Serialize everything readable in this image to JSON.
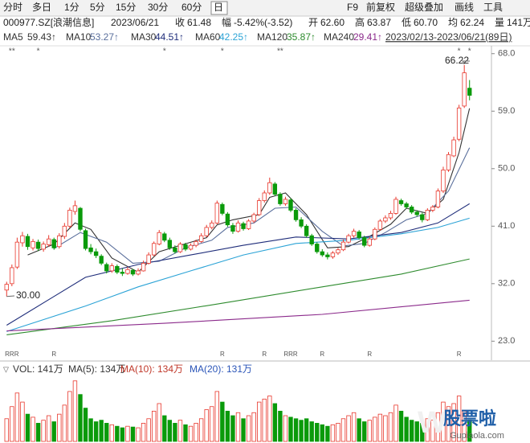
{
  "toolbar": {
    "tabs": [
      "分时",
      "多日",
      "1分",
      "5分",
      "15分",
      "30分",
      "60分",
      "日"
    ],
    "tools": [
      "F9",
      "前复权",
      "超级叠加",
      "画线",
      "工具"
    ]
  },
  "info": {
    "code": "000977.SZ[浪潮信息]",
    "date": "2023/06/21",
    "items": [
      {
        "label": "收",
        "value": "61.48"
      },
      {
        "label": "幅",
        "value": "-5.42%(-3.52)"
      },
      {
        "label": "开",
        "value": "62.60"
      },
      {
        "label": "高",
        "value": "63.87"
      },
      {
        "label": "低",
        "value": "60.70"
      },
      {
        "label": "均",
        "value": "62.24"
      },
      {
        "label": "量",
        "value": "141万"
      }
    ]
  },
  "ma_legend": {
    "items": [
      {
        "name": "MA5",
        "value": "59.43↑",
        "color": "#333333"
      },
      {
        "name": "MA10",
        "value": "53.27↑",
        "color": "#5a6f9c"
      },
      {
        "name": "MA30",
        "value": "44.51↑",
        "color": "#1f2d7a"
      },
      {
        "name": "MA60",
        "value": "42.25↑",
        "color": "#2ba3d6"
      },
      {
        "name": "MA120",
        "value": "35.87↑",
        "color": "#2e8b2e"
      },
      {
        "name": "MA240",
        "value": "29.41↑",
        "color": "#8b2a8b"
      }
    ],
    "range": "2023/02/13-2023/06/21(89日)"
  },
  "volume_legend": [
    {
      "text": "VOL: 141万",
      "color": "#333333"
    },
    {
      "text": "MA(5): 134万",
      "color": "#333333"
    },
    {
      "text": "MA(10): 134万",
      "color": "#c0392b"
    },
    {
      "text": "MA(20): 131万",
      "color": "#2b55b8"
    }
  ],
  "watermark": {
    "brand": "股票啦",
    "site": "Gupiaola.com"
  },
  "chart_data": {
    "type": "candlestick",
    "up_color": "#e8372c",
    "down_color": "#0a9a0a",
    "ylim": [
      20.4,
      69.1
    ],
    "yticks": [
      {
        "value": 23,
        "label": "23.0"
      },
      {
        "value": 32,
        "label": "32.0"
      },
      {
        "value": 41,
        "label": "41.0"
      },
      {
        "value": 50,
        "label": "50.0"
      },
      {
        "value": 59,
        "label": "59.0"
      },
      {
        "value": 68,
        "label": "68.0"
      }
    ],
    "annotations": [
      "66.22",
      "30.00"
    ],
    "candles": [
      [
        31.0,
        32.3,
        30.0,
        31.9
      ],
      [
        32.0,
        35.0,
        31.6,
        34.5
      ],
      [
        34.6,
        39.2,
        34.3,
        38.5
      ],
      [
        38.4,
        40.1,
        37.8,
        39.5
      ],
      [
        39.4,
        39.8,
        37.3,
        37.8
      ],
      [
        37.6,
        39.0,
        37.2,
        38.6
      ],
      [
        38.5,
        38.9,
        37.1,
        37.5
      ],
      [
        37.4,
        38.6,
        37.0,
        38.2
      ],
      [
        38.1,
        39.6,
        37.8,
        39.0
      ],
      [
        38.9,
        39.2,
        37.3,
        37.6
      ],
      [
        37.8,
        39.9,
        37.5,
        39.5
      ],
      [
        39.4,
        41.5,
        39.0,
        41.0
      ],
      [
        41.0,
        43.9,
        40.7,
        43.5
      ],
      [
        43.3,
        45.0,
        42.8,
        44.2
      ],
      [
        43.8,
        44.0,
        40.2,
        40.5
      ],
      [
        40.3,
        40.6,
        37.2,
        37.5
      ],
      [
        37.6,
        38.2,
        36.6,
        37.0
      ],
      [
        37.0,
        37.5,
        36.0,
        36.4
      ],
      [
        36.3,
        36.6,
        34.9,
        35.2
      ],
      [
        35.0,
        35.3,
        33.6,
        34.0
      ],
      [
        34.0,
        35.2,
        33.7,
        34.8
      ],
      [
        34.7,
        35.0,
        33.5,
        33.8
      ],
      [
        33.8,
        34.4,
        33.2,
        33.6
      ],
      [
        33.6,
        34.6,
        33.4,
        34.2
      ],
      [
        34.1,
        34.3,
        33.2,
        33.5
      ],
      [
        33.5,
        34.4,
        33.3,
        34.0
      ],
      [
        34.0,
        35.6,
        33.9,
        35.2
      ],
      [
        35.2,
        36.9,
        35.0,
        36.5
      ],
      [
        36.5,
        38.6,
        36.3,
        38.3
      ],
      [
        38.2,
        40.4,
        38.0,
        40.0
      ],
      [
        39.8,
        40.1,
        38.5,
        38.8
      ],
      [
        38.8,
        39.2,
        37.3,
        37.6
      ],
      [
        37.6,
        38.0,
        36.7,
        37.0
      ],
      [
        37.0,
        38.5,
        36.8,
        38.2
      ],
      [
        38.1,
        38.4,
        37.1,
        37.4
      ],
      [
        37.4,
        38.3,
        37.2,
        38.0
      ],
      [
        38.0,
        38.9,
        37.7,
        38.6
      ],
      [
        38.6,
        39.9,
        38.4,
        39.5
      ],
      [
        39.5,
        41.2,
        39.3,
        40.8
      ],
      [
        40.8,
        41.9,
        40.5,
        41.5
      ],
      [
        41.5,
        45.0,
        41.3,
        44.6
      ],
      [
        44.4,
        44.7,
        42.7,
        43.0
      ],
      [
        42.9,
        43.2,
        40.9,
        41.2
      ],
      [
        41.1,
        41.5,
        39.8,
        40.2
      ],
      [
        40.2,
        41.9,
        40.0,
        41.5
      ],
      [
        41.4,
        41.7,
        40.3,
        40.6
      ],
      [
        40.6,
        42.1,
        40.4,
        41.8
      ],
      [
        41.8,
        43.1,
        41.5,
        42.8
      ],
      [
        42.8,
        45.4,
        42.6,
        45.0
      ],
      [
        45.0,
        46.6,
        44.7,
        46.2
      ],
      [
        46.2,
        48.6,
        45.9,
        47.8
      ],
      [
        47.6,
        47.9,
        45.7,
        46.0
      ],
      [
        46.0,
        46.3,
        44.2,
        44.5
      ],
      [
        44.5,
        45.6,
        44.2,
        45.2
      ],
      [
        45.1,
        45.4,
        43.2,
        43.5
      ],
      [
        43.5,
        43.8,
        41.7,
        42.0
      ],
      [
        42.0,
        42.4,
        40.7,
        41.0
      ],
      [
        41.0,
        41.3,
        39.2,
        39.5
      ],
      [
        39.5,
        39.8,
        37.9,
        38.2
      ],
      [
        38.2,
        38.5,
        36.7,
        37.0
      ],
      [
        37.0,
        37.4,
        36.2,
        36.5
      ],
      [
        36.5,
        36.9,
        35.8,
        36.2
      ],
      [
        36.2,
        37.1,
        35.9,
        36.8
      ],
      [
        36.8,
        37.6,
        36.5,
        37.3
      ],
      [
        37.3,
        38.9,
        37.1,
        38.5
      ],
      [
        38.5,
        39.8,
        38.3,
        39.5
      ],
      [
        39.5,
        40.6,
        39.2,
        40.2
      ],
      [
        40.1,
        40.4,
        38.9,
        39.2
      ],
      [
        39.2,
        39.5,
        37.7,
        38.0
      ],
      [
        38.0,
        39.3,
        37.8,
        39.0
      ],
      [
        39.0,
        40.8,
        38.8,
        40.5
      ],
      [
        40.5,
        42.1,
        40.3,
        41.8
      ],
      [
        41.8,
        42.7,
        41.5,
        42.3
      ],
      [
        42.3,
        43.4,
        42.0,
        43.0
      ],
      [
        43.0,
        45.6,
        42.8,
        45.2
      ],
      [
        45.0,
        45.3,
        44.2,
        44.5
      ],
      [
        44.5,
        44.8,
        43.7,
        44.0
      ],
      [
        44.0,
        44.3,
        42.9,
        43.2
      ],
      [
        43.2,
        43.5,
        42.5,
        42.8
      ],
      [
        42.8,
        43.1,
        41.6,
        42.0
      ],
      [
        42.0,
        43.8,
        41.8,
        43.5
      ],
      [
        43.5,
        44.3,
        43.2,
        44.0
      ],
      [
        44.0,
        46.9,
        43.8,
        46.5
      ],
      [
        46.5,
        50.3,
        46.2,
        49.8
      ],
      [
        49.8,
        52.6,
        49.5,
        52.2
      ],
      [
        52.0,
        55.0,
        51.8,
        54.5
      ],
      [
        54.6,
        60.0,
        54.3,
        59.5
      ],
      [
        59.8,
        66.22,
        59.5,
        65.0
      ],
      [
        62.6,
        63.87,
        60.7,
        61.48
      ]
    ],
    "ma_lines": [
      {
        "name": "MA5",
        "color": "#333333",
        "x": [
          4,
          9,
          13,
          16,
          20,
          25,
          29,
          33,
          38,
          40,
          43,
          48,
          50,
          53,
          57,
          61,
          65,
          69,
          73,
          76,
          80,
          83,
          86,
          88
        ],
        "values": [
          36.5,
          38.2,
          41.5,
          40.5,
          36.0,
          33.8,
          37.0,
          38.0,
          39.2,
          41.2,
          42.0,
          42.8,
          45.5,
          46.2,
          42.8,
          37.6,
          37.8,
          39.4,
          41.3,
          43.8,
          43.0,
          45.2,
          52.5,
          59.43
        ]
      },
      {
        "name": "MA10",
        "color": "#5a6f9c",
        "x": [
          9,
          14,
          19,
          24,
          29,
          34,
          39,
          42,
          47,
          51,
          55,
          60,
          64,
          68,
          72,
          76,
          80,
          84,
          88
        ],
        "values": [
          37.5,
          40.0,
          38.5,
          35.2,
          35.5,
          37.6,
          38.8,
          40.8,
          41.5,
          43.8,
          44.0,
          40.2,
          37.9,
          38.3,
          40.0,
          42.0,
          43.0,
          46.5,
          53.27
        ]
      },
      {
        "name": "MA30",
        "color": "#1f2d7a",
        "x": [
          0,
          8,
          15,
          25,
          35,
          45,
          55,
          65,
          75,
          82,
          88
        ],
        "values": [
          25.5,
          29.5,
          33.0,
          35.0,
          36.5,
          38.0,
          39.3,
          39.0,
          40.0,
          41.5,
          44.51
        ]
      },
      {
        "name": "MA60",
        "color": "#2ba3d6",
        "x": [
          0,
          15,
          25,
          35,
          45,
          55,
          65,
          75,
          82,
          88
        ],
        "values": [
          24.5,
          28.5,
          31.5,
          34.0,
          36.5,
          38.3,
          38.8,
          39.8,
          40.8,
          42.25
        ]
      },
      {
        "name": "MA120",
        "color": "#2e8b2e",
        "x": [
          0,
          20,
          40,
          60,
          75,
          88
        ],
        "values": [
          24.0,
          26.2,
          28.8,
          31.5,
          33.5,
          35.87
        ]
      },
      {
        "name": "MA240",
        "color": "#8b2a8b",
        "x": [
          0,
          30,
          60,
          88
        ],
        "values": [
          24.6,
          25.8,
          27.2,
          29.41
        ]
      }
    ],
    "top_flags": [
      null,
      "**",
      null,
      null,
      null,
      null,
      "*",
      null,
      null,
      null,
      null,
      null,
      null,
      null,
      null,
      null,
      null,
      null,
      null,
      null,
      null,
      null,
      null,
      null,
      null,
      null,
      null,
      null,
      null,
      null,
      "*",
      null,
      null,
      null,
      null,
      null,
      null,
      null,
      null,
      null,
      null,
      "*",
      null,
      null,
      null,
      null,
      null,
      null,
      null,
      null,
      null,
      null,
      "**",
      null,
      null,
      null,
      null,
      null,
      null,
      null,
      null,
      null,
      null,
      null,
      null,
      null,
      null,
      null,
      null,
      null,
      null,
      null,
      null,
      null,
      null,
      null,
      null,
      null,
      null,
      null,
      null,
      null,
      null,
      null,
      null,
      null,
      "*",
      null,
      "*"
    ],
    "bottom_flags": [
      null,
      "RRR",
      null,
      null,
      null,
      null,
      null,
      null,
      null,
      "R",
      null,
      null,
      null,
      null,
      null,
      null,
      null,
      null,
      null,
      null,
      null,
      null,
      null,
      null,
      null,
      null,
      null,
      null,
      null,
      null,
      null,
      null,
      null,
      null,
      null,
      null,
      null,
      null,
      null,
      null,
      null,
      "R",
      null,
      null,
      null,
      null,
      null,
      null,
      null,
      "R",
      null,
      null,
      null,
      null,
      "RRR",
      null,
      null,
      null,
      null,
      null,
      "R",
      null,
      null,
      null,
      null,
      null,
      null,
      null,
      null,
      "R",
      null,
      null,
      null,
      null,
      null,
      null,
      null,
      null,
      null,
      null,
      null,
      null,
      null,
      null,
      null,
      null,
      "R",
      null,
      null
    ],
    "volume": {
      "ylim": [
        0,
        420
      ],
      "values": [
        150,
        230,
        320,
        260,
        180,
        160,
        120,
        140,
        170,
        130,
        180,
        240,
        330,
        400,
        310,
        220,
        150,
        130,
        140,
        120,
        110,
        100,
        90,
        100,
        95,
        90,
        120,
        150,
        200,
        250,
        170,
        140,
        120,
        140,
        110,
        100,
        120,
        150,
        210,
        230,
        330,
        260,
        200,
        170,
        190,
        150,
        170,
        190,
        260,
        280,
        300,
        250,
        200,
        170,
        160,
        150,
        140,
        150,
        130,
        120,
        110,
        100,
        110,
        120,
        150,
        170,
        190,
        150,
        130,
        140,
        160,
        180,
        170,
        190,
        240,
        200,
        160,
        140,
        130,
        120,
        150,
        140,
        190,
        260,
        230,
        250,
        300,
        200,
        141
      ]
    }
  }
}
